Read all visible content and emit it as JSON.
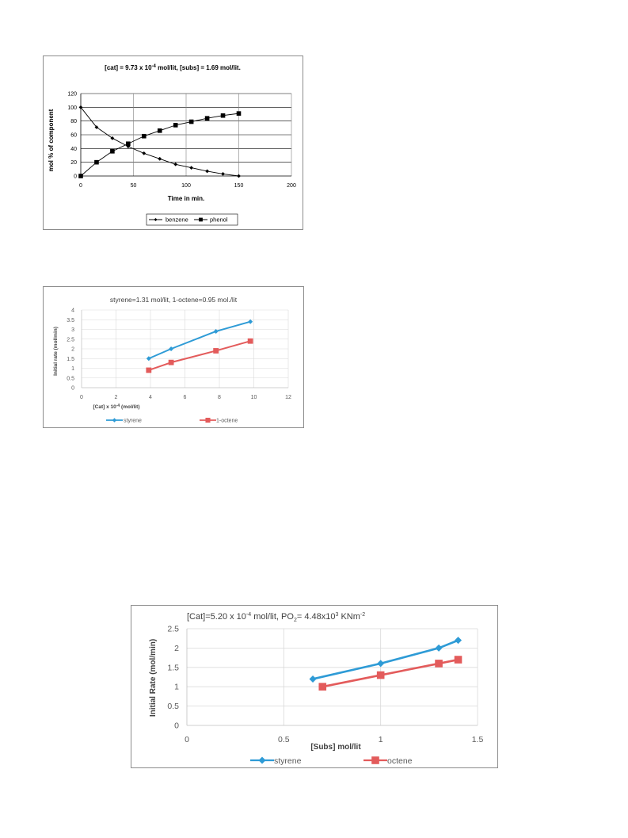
{
  "charts": [
    {
      "title_parts": [
        "[cat] = 9.73 x 10",
        "-4",
        " mol/lit,  [subs] = 1.69 mol/lit."
      ],
      "xlabel": "Time in min.",
      "ylabel": "mol % of component",
      "x_ticks": [
        "0",
        "50",
        "100",
        "150",
        "200"
      ],
      "y_ticks": [
        "0",
        "20",
        "40",
        "60",
        "80",
        "100",
        "120"
      ],
      "legend": [
        "benzene",
        "phenol"
      ]
    },
    {
      "title": "styrene=1.31 mol/lit, 1-octene=0.95 mol./lit",
      "xlabel_parts": [
        "[Cat] x 10",
        "-4",
        " (mol/lit)"
      ],
      "ylabel": "Initial rate (mol/min)",
      "x_ticks": [
        "0",
        "2",
        "4",
        "6",
        "8",
        "10",
        "12"
      ],
      "y_ticks": [
        "0",
        "0.5",
        "1",
        "1.5",
        "2",
        "2.5",
        "3",
        "3.5",
        "4"
      ],
      "legend": [
        "styrene",
        "1-octene"
      ]
    },
    {
      "title_parts": [
        "[Cat]=5.20 x 10",
        "-4",
        " mol/lit, PO",
        "2",
        "= 4.48x10",
        "3",
        " KNm",
        "-2"
      ],
      "xlabel": "[Subs] mol/lit",
      "ylabel": "Initial Rate (mol/min)",
      "x_ticks": [
        "0",
        "0.5",
        "1",
        "1.5"
      ],
      "y_ticks": [
        "0",
        "0.5",
        "1",
        "1.5",
        "2",
        "2.5"
      ],
      "legend": [
        "styrene",
        "octene"
      ]
    }
  ],
  "chart_data": [
    {
      "type": "line",
      "xlim": [
        0,
        200
      ],
      "ylim": [
        0,
        120
      ],
      "grid": "horizontal and vertical",
      "legend_position": "bottom",
      "series": [
        {
          "name": "benzene",
          "color": "#000000",
          "marker": "diamond",
          "x": [
            0,
            15,
            30,
            45,
            60,
            75,
            90,
            105,
            120,
            135,
            150
          ],
          "y": [
            100,
            71,
            55,
            43,
            33,
            25,
            17,
            12,
            7,
            3,
            0
          ]
        },
        {
          "name": "phenol",
          "color": "#000000",
          "marker": "square",
          "x": [
            0,
            15,
            30,
            45,
            60,
            75,
            90,
            105,
            120,
            135,
            150
          ],
          "y": [
            0,
            20,
            36,
            47,
            58,
            66,
            74,
            79,
            84,
            88,
            91
          ]
        }
      ]
    },
    {
      "type": "line",
      "xlim": [
        0,
        12
      ],
      "ylim": [
        0,
        4
      ],
      "grid": "horizontal and vertical",
      "legend_position": "bottom",
      "series": [
        {
          "name": "styrene",
          "color": "#2e9bd6",
          "marker": "diamond",
          "x": [
            3.9,
            5.2,
            7.8,
            9.8
          ],
          "y": [
            1.5,
            2.0,
            2.9,
            3.4
          ]
        },
        {
          "name": "1-octene",
          "color": "#e35b5b",
          "marker": "square",
          "x": [
            3.9,
            5.2,
            7.8,
            9.8
          ],
          "y": [
            0.9,
            1.3,
            1.9,
            2.4
          ]
        }
      ]
    },
    {
      "type": "line",
      "xlim": [
        0,
        1.5
      ],
      "ylim": [
        0,
        2.5
      ],
      "grid": "horizontal and vertical",
      "legend_position": "bottom",
      "series": [
        {
          "name": "styrene",
          "color": "#2e9bd6",
          "marker": "diamond",
          "x": [
            0.65,
            1.0,
            1.3,
            1.4
          ],
          "y": [
            1.2,
            1.6,
            2.0,
            2.2
          ]
        },
        {
          "name": "octene",
          "color": "#e35b5b",
          "marker": "square",
          "x": [
            0.7,
            1.0,
            1.3,
            1.4
          ],
          "y": [
            1.0,
            1.3,
            1.6,
            1.7
          ]
        }
      ]
    }
  ]
}
